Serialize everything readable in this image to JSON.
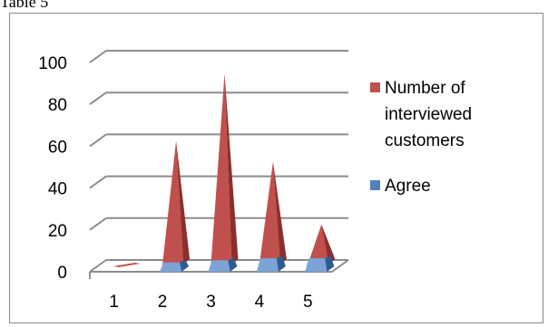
{
  "caption": "Table 5",
  "colors": {
    "series_red": "#C0504D",
    "series_red_dark": "#8C2F2C",
    "series_red_light": "#D9706C",
    "series_blue": "#4F81BD",
    "series_blue_dark": "#2E5C92",
    "series_blue_light": "#7BA3D6",
    "grid": "#8C8C8C"
  },
  "chart_data": {
    "type": "bar",
    "style": "3d-pyramid",
    "title": "",
    "xlabel": "",
    "ylabel": "",
    "categories": [
      "1",
      "2",
      "3",
      "4",
      "5"
    ],
    "series": [
      {
        "name": "Number of interviewed customers",
        "values": [
          0,
          57,
          89,
          47,
          17
        ]
      },
      {
        "name": "Agree",
        "values": [
          0,
          1,
          2,
          3,
          3
        ]
      }
    ],
    "ylim": [
      0,
      100
    ],
    "yticks": [
      "0",
      "20",
      "40",
      "60",
      "80",
      "100"
    ],
    "grid": true,
    "legend": "right",
    "legend_entries": [
      {
        "lines": [
          "Number of",
          "interviewed",
          "customers"
        ]
      },
      {
        "lines": [
          "Agree"
        ]
      }
    ]
  }
}
